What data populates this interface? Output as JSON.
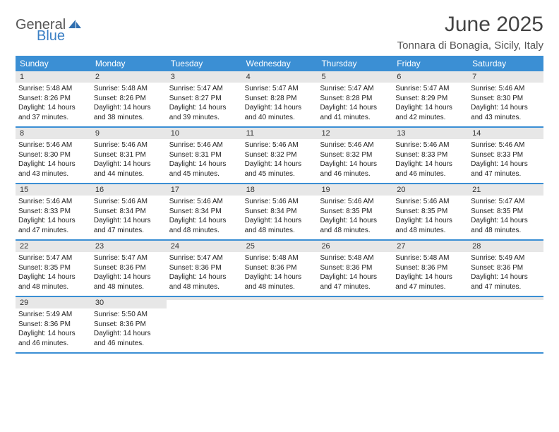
{
  "brand": {
    "part1": "General",
    "part2": "Blue"
  },
  "title": "June 2025",
  "subtitle": "Tonnara di Bonagia, Sicily, Italy",
  "colors": {
    "header_bg": "#3b8fd4",
    "week_border": "#3b8fd4",
    "daynum_bg": "#e7e7e7",
    "brand_gray": "#555555",
    "brand_blue": "#3b7fc4",
    "page_bg": "#ffffff",
    "text": "#1a1a1a"
  },
  "typography": {
    "title_fontsize": 30,
    "subtitle_fontsize": 15,
    "dow_fontsize": 12,
    "daynum_fontsize": 11,
    "body_fontsize": 10
  },
  "days_of_week": [
    "Sunday",
    "Monday",
    "Tuesday",
    "Wednesday",
    "Thursday",
    "Friday",
    "Saturday"
  ],
  "weeks": [
    [
      {
        "num": "1",
        "sunrise": "Sunrise: 5:48 AM",
        "sunset": "Sunset: 8:26 PM",
        "day1": "Daylight: 14 hours",
        "day2": "and 37 minutes."
      },
      {
        "num": "2",
        "sunrise": "Sunrise: 5:48 AM",
        "sunset": "Sunset: 8:26 PM",
        "day1": "Daylight: 14 hours",
        "day2": "and 38 minutes."
      },
      {
        "num": "3",
        "sunrise": "Sunrise: 5:47 AM",
        "sunset": "Sunset: 8:27 PM",
        "day1": "Daylight: 14 hours",
        "day2": "and 39 minutes."
      },
      {
        "num": "4",
        "sunrise": "Sunrise: 5:47 AM",
        "sunset": "Sunset: 8:28 PM",
        "day1": "Daylight: 14 hours",
        "day2": "and 40 minutes."
      },
      {
        "num": "5",
        "sunrise": "Sunrise: 5:47 AM",
        "sunset": "Sunset: 8:28 PM",
        "day1": "Daylight: 14 hours",
        "day2": "and 41 minutes."
      },
      {
        "num": "6",
        "sunrise": "Sunrise: 5:47 AM",
        "sunset": "Sunset: 8:29 PM",
        "day1": "Daylight: 14 hours",
        "day2": "and 42 minutes."
      },
      {
        "num": "7",
        "sunrise": "Sunrise: 5:46 AM",
        "sunset": "Sunset: 8:30 PM",
        "day1": "Daylight: 14 hours",
        "day2": "and 43 minutes."
      }
    ],
    [
      {
        "num": "8",
        "sunrise": "Sunrise: 5:46 AM",
        "sunset": "Sunset: 8:30 PM",
        "day1": "Daylight: 14 hours",
        "day2": "and 43 minutes."
      },
      {
        "num": "9",
        "sunrise": "Sunrise: 5:46 AM",
        "sunset": "Sunset: 8:31 PM",
        "day1": "Daylight: 14 hours",
        "day2": "and 44 minutes."
      },
      {
        "num": "10",
        "sunrise": "Sunrise: 5:46 AM",
        "sunset": "Sunset: 8:31 PM",
        "day1": "Daylight: 14 hours",
        "day2": "and 45 minutes."
      },
      {
        "num": "11",
        "sunrise": "Sunrise: 5:46 AM",
        "sunset": "Sunset: 8:32 PM",
        "day1": "Daylight: 14 hours",
        "day2": "and 45 minutes."
      },
      {
        "num": "12",
        "sunrise": "Sunrise: 5:46 AM",
        "sunset": "Sunset: 8:32 PM",
        "day1": "Daylight: 14 hours",
        "day2": "and 46 minutes."
      },
      {
        "num": "13",
        "sunrise": "Sunrise: 5:46 AM",
        "sunset": "Sunset: 8:33 PM",
        "day1": "Daylight: 14 hours",
        "day2": "and 46 minutes."
      },
      {
        "num": "14",
        "sunrise": "Sunrise: 5:46 AM",
        "sunset": "Sunset: 8:33 PM",
        "day1": "Daylight: 14 hours",
        "day2": "and 47 minutes."
      }
    ],
    [
      {
        "num": "15",
        "sunrise": "Sunrise: 5:46 AM",
        "sunset": "Sunset: 8:33 PM",
        "day1": "Daylight: 14 hours",
        "day2": "and 47 minutes."
      },
      {
        "num": "16",
        "sunrise": "Sunrise: 5:46 AM",
        "sunset": "Sunset: 8:34 PM",
        "day1": "Daylight: 14 hours",
        "day2": "and 47 minutes."
      },
      {
        "num": "17",
        "sunrise": "Sunrise: 5:46 AM",
        "sunset": "Sunset: 8:34 PM",
        "day1": "Daylight: 14 hours",
        "day2": "and 48 minutes."
      },
      {
        "num": "18",
        "sunrise": "Sunrise: 5:46 AM",
        "sunset": "Sunset: 8:34 PM",
        "day1": "Daylight: 14 hours",
        "day2": "and 48 minutes."
      },
      {
        "num": "19",
        "sunrise": "Sunrise: 5:46 AM",
        "sunset": "Sunset: 8:35 PM",
        "day1": "Daylight: 14 hours",
        "day2": "and 48 minutes."
      },
      {
        "num": "20",
        "sunrise": "Sunrise: 5:46 AM",
        "sunset": "Sunset: 8:35 PM",
        "day1": "Daylight: 14 hours",
        "day2": "and 48 minutes."
      },
      {
        "num": "21",
        "sunrise": "Sunrise: 5:47 AM",
        "sunset": "Sunset: 8:35 PM",
        "day1": "Daylight: 14 hours",
        "day2": "and 48 minutes."
      }
    ],
    [
      {
        "num": "22",
        "sunrise": "Sunrise: 5:47 AM",
        "sunset": "Sunset: 8:35 PM",
        "day1": "Daylight: 14 hours",
        "day2": "and 48 minutes."
      },
      {
        "num": "23",
        "sunrise": "Sunrise: 5:47 AM",
        "sunset": "Sunset: 8:36 PM",
        "day1": "Daylight: 14 hours",
        "day2": "and 48 minutes."
      },
      {
        "num": "24",
        "sunrise": "Sunrise: 5:47 AM",
        "sunset": "Sunset: 8:36 PM",
        "day1": "Daylight: 14 hours",
        "day2": "and 48 minutes."
      },
      {
        "num": "25",
        "sunrise": "Sunrise: 5:48 AM",
        "sunset": "Sunset: 8:36 PM",
        "day1": "Daylight: 14 hours",
        "day2": "and 48 minutes."
      },
      {
        "num": "26",
        "sunrise": "Sunrise: 5:48 AM",
        "sunset": "Sunset: 8:36 PM",
        "day1": "Daylight: 14 hours",
        "day2": "and 47 minutes."
      },
      {
        "num": "27",
        "sunrise": "Sunrise: 5:48 AM",
        "sunset": "Sunset: 8:36 PM",
        "day1": "Daylight: 14 hours",
        "day2": "and 47 minutes."
      },
      {
        "num": "28",
        "sunrise": "Sunrise: 5:49 AM",
        "sunset": "Sunset: 8:36 PM",
        "day1": "Daylight: 14 hours",
        "day2": "and 47 minutes."
      }
    ],
    [
      {
        "num": "29",
        "sunrise": "Sunrise: 5:49 AM",
        "sunset": "Sunset: 8:36 PM",
        "day1": "Daylight: 14 hours",
        "day2": "and 46 minutes."
      },
      {
        "num": "30",
        "sunrise": "Sunrise: 5:50 AM",
        "sunset": "Sunset: 8:36 PM",
        "day1": "Daylight: 14 hours",
        "day2": "and 46 minutes."
      },
      {
        "num": "",
        "sunrise": "",
        "sunset": "",
        "day1": "",
        "day2": ""
      },
      {
        "num": "",
        "sunrise": "",
        "sunset": "",
        "day1": "",
        "day2": ""
      },
      {
        "num": "",
        "sunrise": "",
        "sunset": "",
        "day1": "",
        "day2": ""
      },
      {
        "num": "",
        "sunrise": "",
        "sunset": "",
        "day1": "",
        "day2": ""
      },
      {
        "num": "",
        "sunrise": "",
        "sunset": "",
        "day1": "",
        "day2": ""
      }
    ]
  ]
}
